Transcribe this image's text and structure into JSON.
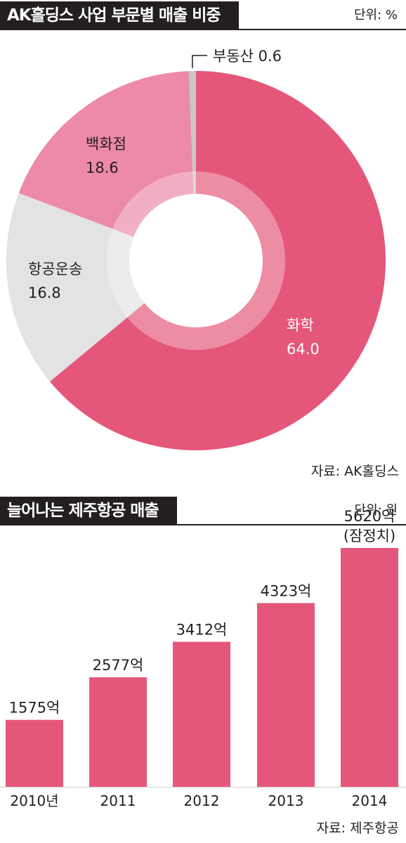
{
  "pie_section": {
    "title": "AK홀딩스 사업 부문별 매출 비중",
    "unit": "단위: %",
    "source": "자료: AK홀딩스"
  },
  "bar_section": {
    "title": "늘어나는 제주항공 매출",
    "unit": "단위: 원",
    "source": "자료: 제주항공"
  },
  "chart_data": [
    {
      "type": "pie",
      "title": "AK홀딩스 사업 부문별 매출 비중",
      "unit": "%",
      "slices": [
        {
          "label": "화학",
          "value": 64.0,
          "value_label": "64.0",
          "color": "#e5577a"
        },
        {
          "label": "항공운송",
          "value": 16.8,
          "value_label": "16.8",
          "color": "#e3e3e3"
        },
        {
          "label": "백화점",
          "value": 18.6,
          "value_label": "18.6",
          "color": "#ec8aa7"
        },
        {
          "label": "부동산",
          "value": 0.6,
          "value_label": "0.6",
          "color": "#c7c7c7"
        }
      ],
      "donut": true,
      "legend": "none"
    },
    {
      "type": "bar",
      "title": "늘어나는 제주항공 매출",
      "unit": "원",
      "categories": [
        "2010년",
        "2011",
        "2012",
        "2013",
        "2014"
      ],
      "values": [
        1575,
        2577,
        3412,
        4323,
        5620
      ],
      "value_labels": [
        "1575억",
        "2577억",
        "3412억",
        "4323억",
        "5620억"
      ],
      "notes": [
        "",
        "",
        "",
        "",
        "(잠정치)"
      ],
      "color": "#e5577a",
      "grid": false,
      "yaxis": "hidden"
    }
  ]
}
